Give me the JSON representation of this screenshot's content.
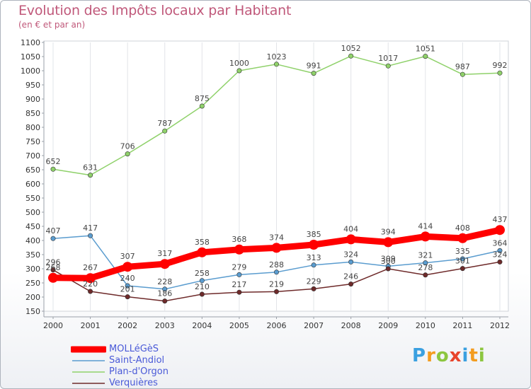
{
  "chart_data": {
    "type": "line",
    "title": "Evolution des Impôts locaux par Habitant",
    "subtitle": "(en € et par an)",
    "x": [
      "2000",
      "2001",
      "2002",
      "2003",
      "2004",
      "2005",
      "2006",
      "2007",
      "2008",
      "2009",
      "2010",
      "2011",
      "2012"
    ],
    "ylim": [
      150,
      1100
    ],
    "yticks": [
      150,
      200,
      250,
      300,
      350,
      400,
      450,
      500,
      550,
      600,
      650,
      700,
      750,
      800,
      850,
      900,
      950,
      1000,
      1050,
      1100
    ],
    "grid": "x",
    "legend_position": "bottom-left",
    "series": [
      {
        "name": "Plan-d'Orgon",
        "color": "#8fd16a",
        "values": [
          652,
          631,
          706,
          787,
          875,
          1000,
          1023,
          991,
          1052,
          1017,
          1051,
          987,
          992
        ]
      },
      {
        "name": "Saint-Andiol",
        "color": "#5a9ccf",
        "values": [
          407,
          417,
          240,
          228,
          258,
          279,
          288,
          313,
          324,
          309,
          321,
          335,
          364
        ]
      },
      {
        "name": "Verquières",
        "color": "#6e2a2a",
        "values": [
          296,
          220,
          201,
          186,
          210,
          217,
          219,
          229,
          246,
          300,
          278,
          301,
          324
        ]
      },
      {
        "name": "MOLLéGèS",
        "color": "#ff0000",
        "values": [
          268,
          267,
          307,
          317,
          358,
          368,
          374,
          385,
          404,
          394,
          414,
          408,
          437
        ]
      }
    ]
  },
  "legend": {
    "items": [
      {
        "label": "MOLLéGèS",
        "color": "#ff0000"
      },
      {
        "label": "Saint-Andiol",
        "color": "#5a9ccf"
      },
      {
        "label": "Plan-d'Orgon",
        "color": "#8fd16a"
      },
      {
        "label": "Verquières",
        "color": "#6e2a2a"
      }
    ]
  },
  "logo": {
    "text": "Proxiti",
    "letters": [
      {
        "ch": "P",
        "color": "#3aa0e0"
      },
      {
        "ch": "r",
        "color": "#f39c1f"
      },
      {
        "ch": "o",
        "color": "#8cc63f"
      },
      {
        "ch": "x",
        "color": "#e8452c"
      },
      {
        "ch": "i",
        "color": "#3aa0e0"
      },
      {
        "ch": "t",
        "color": "#f39c1f"
      },
      {
        "ch": "i",
        "color": "#8cc63f"
      }
    ]
  }
}
